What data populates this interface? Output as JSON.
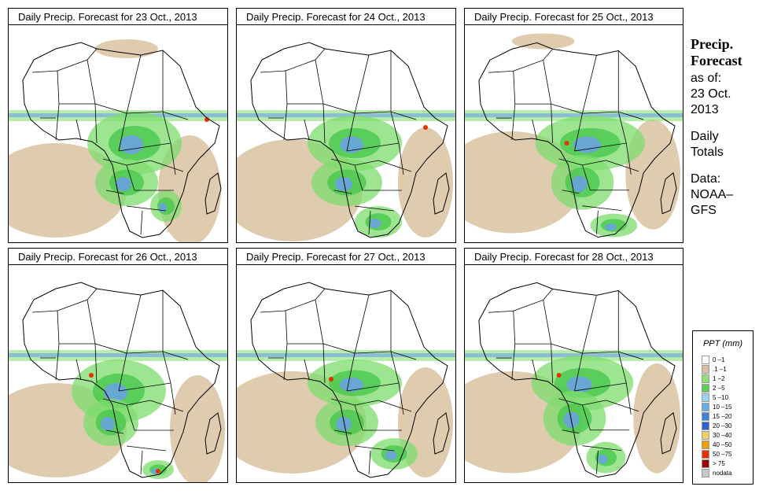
{
  "panels": [
    {
      "title": "Daily Precip. Forecast for  23 Oct., 2013"
    },
    {
      "title": "Daily Precip. Forecast for  24 Oct., 2013"
    },
    {
      "title": "Daily Precip. Forecast for  25 Oct., 2013"
    },
    {
      "title": "Daily Precip. Forecast for  26 Oct., 2013"
    },
    {
      "title": "Daily Precip. Forecast for  27 Oct., 2013"
    },
    {
      "title": "Daily Precip. Forecast for  28 Oct., 2013"
    }
  ],
  "sidebar": {
    "heading1": "Precip.",
    "heading2": "Forecast",
    "asof": "as of:",
    "date1": "23 Oct.",
    "date2": "2013",
    "totals1": "Daily",
    "totals2": "Totals",
    "data1": "Data:",
    "data2": "NOAA–",
    "data3": "GFS"
  },
  "legend": {
    "title": "PPT (mm)",
    "items": [
      {
        "label": "0 –1",
        "color": "#ffffff"
      },
      {
        "label": ".1 –1",
        "color": "#d9c0a0"
      },
      {
        "label": "1 –2",
        "color": "#8ee07a"
      },
      {
        "label": "2 –5",
        "color": "#5bd05b"
      },
      {
        "label": "5 –10",
        "color": "#9fd4f0"
      },
      {
        "label": "10 –15",
        "color": "#6aaee8"
      },
      {
        "label": "15 –20",
        "color": "#3f7fe0"
      },
      {
        "label": "20 –30",
        "color": "#2f5fd0"
      },
      {
        "label": "30 –40",
        "color": "#f0d060"
      },
      {
        "label": "40 –50",
        "color": "#f0a000"
      },
      {
        "label": "50 –75",
        "color": "#e83000"
      },
      {
        "label": "> 75",
        "color": "#a00000"
      },
      {
        "label": "nodata",
        "color": "#c8c8c8"
      }
    ]
  },
  "colors": {
    "sand": "#dcc7a6",
    "green": "#7edc6e",
    "darkgreen": "#49c84e",
    "blue": "#6aa0e8",
    "dblue": "#2a5ed8",
    "red": "#e83000"
  }
}
